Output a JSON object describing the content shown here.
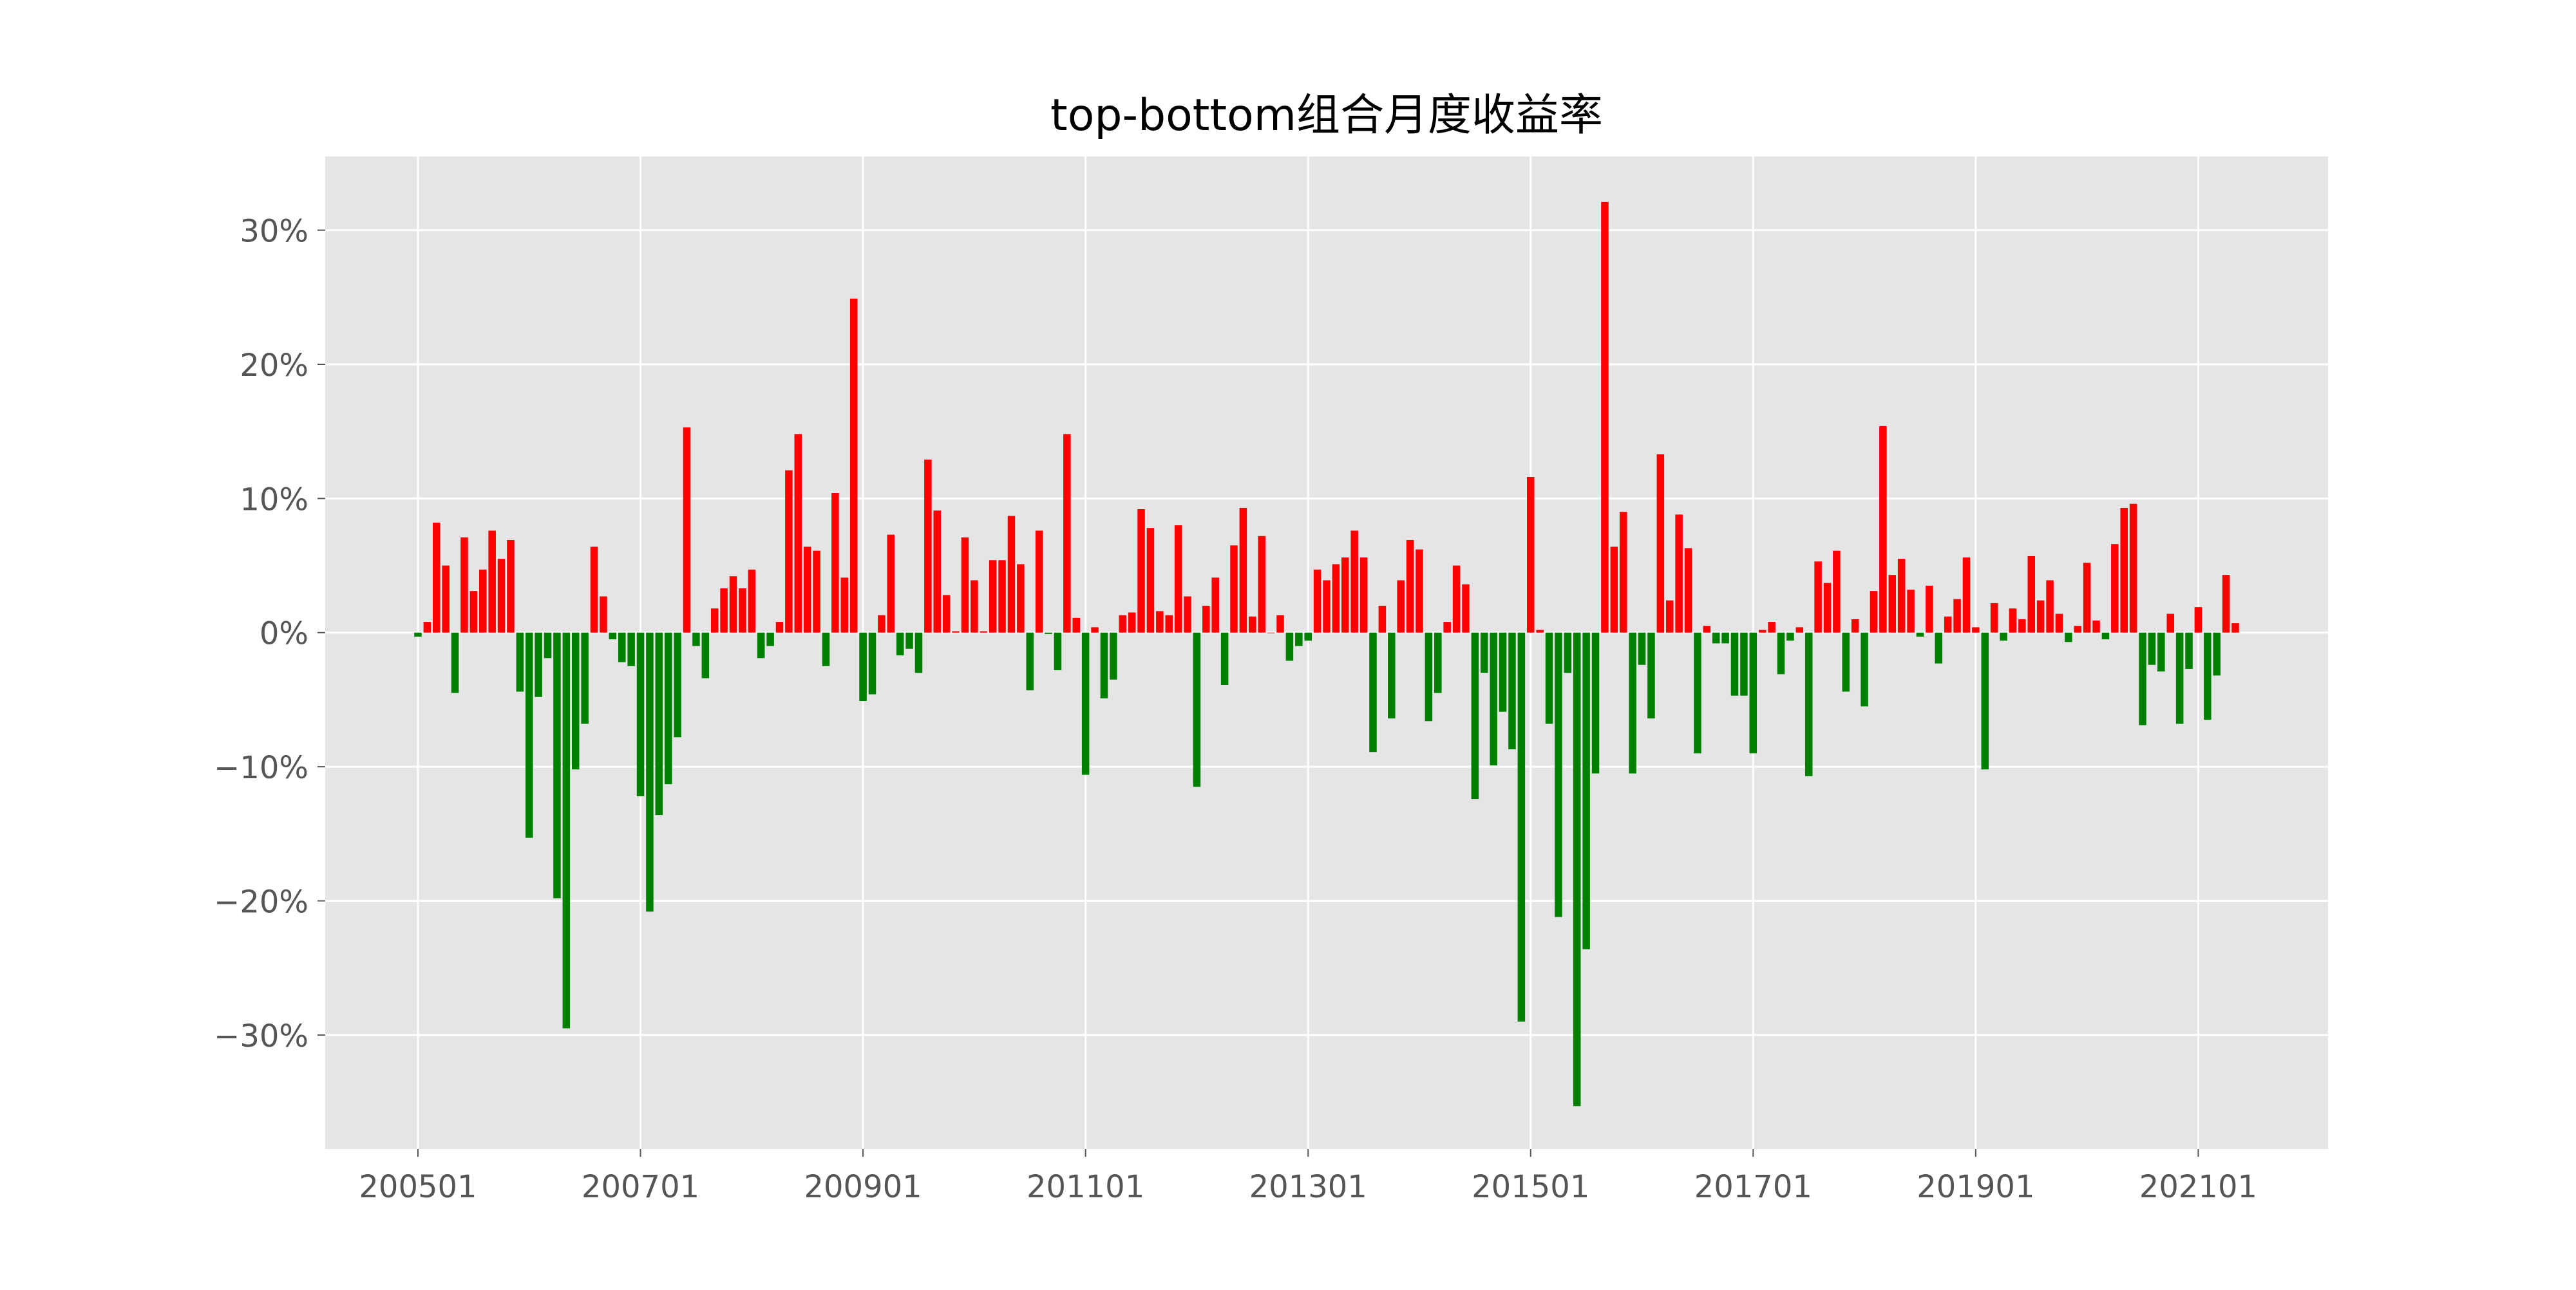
{
  "chart_data": {
    "type": "bar",
    "title": "top-bottom组合月度收益率",
    "xlabel": "",
    "ylabel": "",
    "ylim": [
      -38.5,
      35.5
    ],
    "y_ticks": [
      30,
      20,
      10,
      0,
      -10,
      -20,
      -30
    ],
    "y_tick_labels": [
      "30%",
      "20%",
      "10%",
      "0%",
      "−10%",
      "−20%",
      "−30%"
    ],
    "x_tick_labels": [
      "200501",
      "200701",
      "200901",
      "201101",
      "201301",
      "201501",
      "201701",
      "201901",
      "202101"
    ],
    "x_tick_indices": [
      0,
      24,
      48,
      72,
      96,
      120,
      144,
      168,
      192
    ],
    "x_range": [
      -10,
      206
    ],
    "grid": true,
    "positive_color": "#ff0000",
    "negative_color": "#008000",
    "background_color": "#e5e5e5",
    "start_month": "200501",
    "values": [
      -0.3,
      0.8,
      8.2,
      5.0,
      -4.5,
      7.1,
      3.1,
      4.7,
      7.6,
      5.5,
      6.9,
      -4.4,
      -15.3,
      -4.8,
      -1.9,
      -19.8,
      -29.5,
      -10.2,
      -6.8,
      6.4,
      2.7,
      -0.5,
      -2.2,
      -2.5,
      -12.2,
      -20.8,
      -13.6,
      -11.3,
      -7.8,
      15.3,
      -1.0,
      -3.4,
      1.8,
      3.3,
      4.2,
      3.3,
      4.7,
      -1.9,
      -1.0,
      0.8,
      12.1,
      14.8,
      6.4,
      6.1,
      -2.5,
      10.4,
      4.1,
      24.9,
      -5.1,
      -4.6,
      1.3,
      7.3,
      -1.7,
      -1.2,
      -3.0,
      12.9,
      9.1,
      2.8,
      0.1,
      7.1,
      3.9,
      0.1,
      5.4,
      5.4,
      8.7,
      5.1,
      -4.3,
      7.6,
      -0.1,
      -2.8,
      14.8,
      1.1,
      -10.6,
      0.4,
      -4.9,
      -3.5,
      1.3,
      1.5,
      9.2,
      7.8,
      1.6,
      1.3,
      8.0,
      2.7,
      -11.5,
      2.0,
      4.1,
      -3.9,
      6.5,
      9.3,
      1.2,
      7.2,
      0.0,
      1.3,
      -2.1,
      -1.0,
      -0.6,
      4.7,
      3.9,
      5.1,
      5.6,
      7.6,
      5.6,
      -8.9,
      2.0,
      -6.4,
      3.9,
      6.9,
      6.2,
      -6.6,
      -4.5,
      0.8,
      5.0,
      3.6,
      -12.4,
      -3.0,
      -9.9,
      -5.9,
      -8.7,
      -29.0,
      11.6,
      0.2,
      -6.8,
      -21.2,
      -3.0,
      -35.3,
      -23.6,
      -10.5,
      32.1,
      6.4,
      9.0,
      -10.5,
      -2.4,
      -6.4,
      13.3,
      2.4,
      8.8,
      6.3,
      -9.0,
      0.5,
      -0.8,
      -0.8,
      -4.7,
      -4.7,
      -9.0,
      0.2,
      0.8,
      -3.1,
      -0.6,
      0.4,
      -10.7,
      5.3,
      3.7,
      6.1,
      -4.4,
      1.0,
      -5.5,
      3.1,
      15.4,
      4.3,
      5.5,
      3.2,
      -0.3,
      3.5,
      -2.3,
      1.2,
      2.5,
      5.6,
      0.4,
      -10.2,
      2.2,
      -0.6,
      1.8,
      1.0,
      5.7,
      2.4,
      3.9,
      1.4,
      -0.7,
      0.5,
      5.2,
      0.9,
      -0.5,
      6.6,
      9.3,
      9.6,
      -6.9,
      -2.4,
      -2.9,
      1.4,
      -6.8,
      -2.7,
      1.9,
      -6.5,
      -3.2,
      4.3,
      0.7
    ]
  }
}
